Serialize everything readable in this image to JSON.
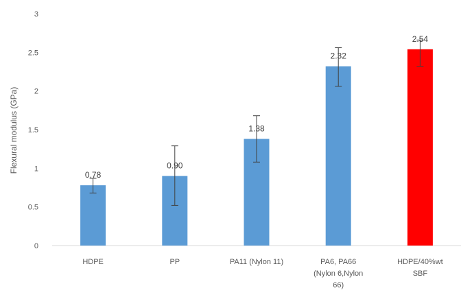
{
  "chart_data": {
    "type": "bar",
    "title": "",
    "xlabel": "",
    "ylabel": "Flexural modulus (GPa)",
    "ylim": [
      0,
      3
    ],
    "yticks": [
      "0",
      "0.5",
      "1",
      "1.5",
      "2",
      "2.5",
      "3"
    ],
    "grid": false,
    "categories": [
      [
        "HDPE"
      ],
      [
        "PP"
      ],
      [
        "PA11 (Nylon 11)"
      ],
      [
        "PA6, PA66",
        "(Nylon 6,Nylon",
        "66)"
      ],
      [
        "HDPE/40%wt",
        "SBF"
      ]
    ],
    "values": [
      0.78,
      0.9,
      1.38,
      2.32,
      2.54
    ],
    "value_labels": [
      "0.78",
      "0.90",
      "1.38",
      "2.32",
      "2.54"
    ],
    "error_low": [
      0.68,
      0.52,
      1.08,
      2.06,
      2.32
    ],
    "error_high": [
      0.87,
      1.29,
      1.68,
      2.56,
      2.66
    ],
    "colors": [
      "#5b9bd5",
      "#5b9bd5",
      "#5b9bd5",
      "#5b9bd5",
      "#ff0000"
    ]
  }
}
